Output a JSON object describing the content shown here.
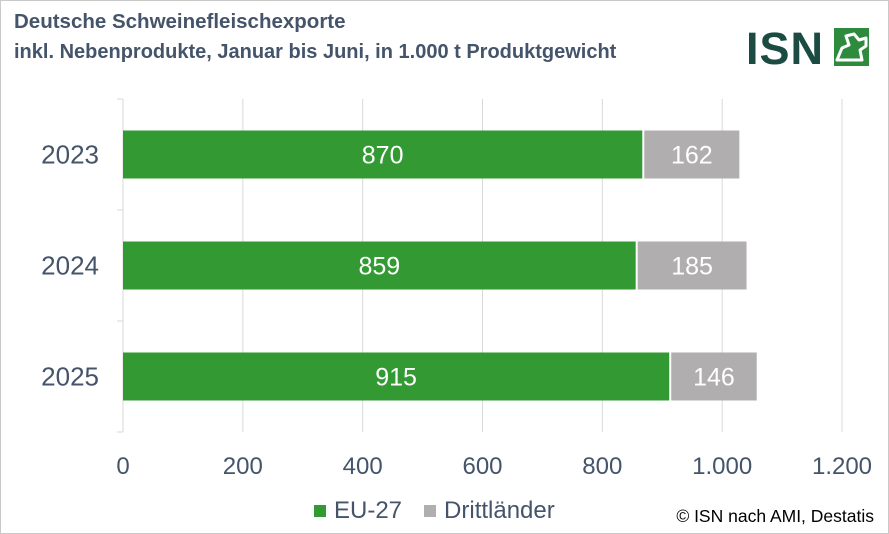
{
  "header": {
    "title": "Deutsche Schweinefleischexporte",
    "subtitle": "inkl. Nebenprodukte, Januar bis Juni, in 1.000 t Produktgewicht"
  },
  "logo": {
    "text": "ISN",
    "color": "#1b4b43",
    "accent": "#2e8b3e"
  },
  "chart_data": {
    "type": "bar",
    "orientation": "horizontal",
    "stacked": true,
    "categories": [
      "2023",
      "2024",
      "2025"
    ],
    "series": [
      {
        "name": "EU-27",
        "values": [
          870,
          859,
          915
        ],
        "color": "#339933"
      },
      {
        "name": "Drittländer",
        "values": [
          162,
          185,
          146
        ],
        "color": "#b0aeae"
      }
    ],
    "xlim": [
      0,
      1200
    ],
    "xticks": [
      0,
      200,
      400,
      600,
      800,
      1000,
      1200
    ],
    "xtick_labels": [
      "0",
      "200",
      "400",
      "600",
      "800",
      "1.000",
      "1.200"
    ],
    "grid": true,
    "legend": "bottom"
  },
  "source": "© ISN nach AMI, Destatis"
}
